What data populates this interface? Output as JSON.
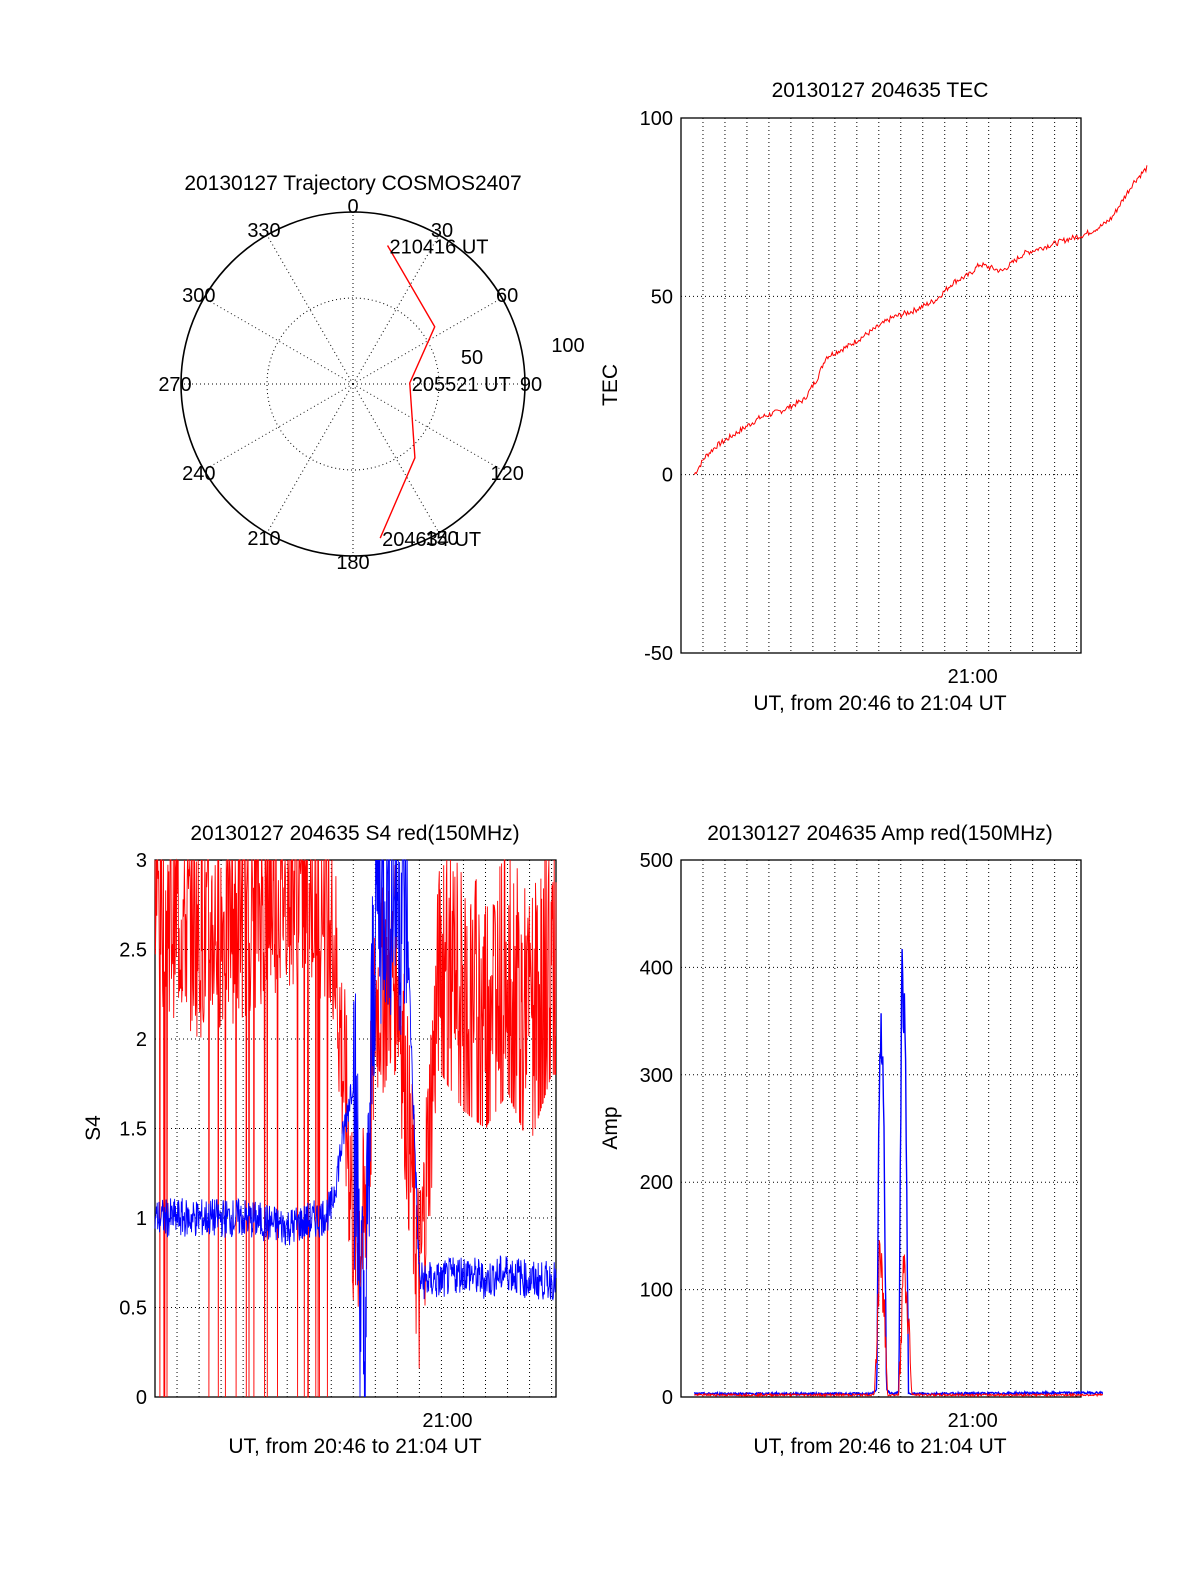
{
  "chart_data": [
    {
      "type": "polar",
      "title": "20130127 Trajectory COSMOS2407",
      "angle_labels": [
        "0",
        "30",
        "60",
        "90",
        "120",
        "150",
        "180",
        "210",
        "240",
        "270",
        "300",
        "330"
      ],
      "radial_labels": [
        "50",
        "100"
      ],
      "trajectory": {
        "color": "#ff0000",
        "points": [
          {
            "az": 14,
            "r": 83,
            "label": "210416 UT"
          },
          {
            "az": 55,
            "r": 58
          },
          {
            "az": 89,
            "r": 33,
            "label": "205521 UT"
          },
          {
            "az": 140,
            "r": 56
          },
          {
            "az": 170,
            "r": 91,
            "label": "204634 UT"
          }
        ]
      }
    },
    {
      "type": "line",
      "title": "20130127 204635 TEC",
      "xlabel": "UT, from 20:46 to 21:04 UT",
      "ylabel": "TEC",
      "x_range_minutes": [
        20.6,
        21.1
      ],
      "ylim": [
        -50,
        100
      ],
      "yticks": [
        "-50",
        "0",
        "50",
        "100"
      ],
      "xticks": [
        {
          "label": "21:00",
          "minute": 0
        }
      ],
      "grid": true,
      "series": [
        {
          "color": "#ff0000",
          "x_minutes": [
            0.0,
            0.5,
            1.0,
            2.0,
            3.0,
            4.0,
            5.0,
            5.6,
            6.0,
            7.0,
            8.0,
            9.0,
            10.0,
            11.0,
            11.8,
            12.5,
            13.0,
            14.0,
            15.0,
            16.0,
            17.0,
            17.6,
            18.0,
            18.6,
            19.0,
            19.5,
            20.0,
            20.6
          ],
          "values": [
            0,
            5,
            8,
            12,
            16,
            18,
            21,
            27,
            33,
            36,
            40,
            44,
            46,
            49,
            54,
            56,
            59,
            57,
            62,
            64,
            66,
            67,
            68,
            70,
            72,
            77,
            82,
            86
          ]
        }
      ]
    },
    {
      "type": "line",
      "title": "20130127 204635 S4 red(150MHz)",
      "xlabel": "UT, from 20:46 to 21:04 UT",
      "ylabel": "S4",
      "ylim": [
        0,
        3
      ],
      "yticks": [
        "0",
        "0.5",
        "1",
        "1.5",
        "2",
        "2.5",
        "3"
      ],
      "xticks": [
        {
          "label": "21:00",
          "minute": 0
        }
      ],
      "grid": true,
      "series": [
        {
          "color": "#ff0000",
          "description_points_x_minutes": [
            0,
            2,
            4,
            6,
            8,
            9,
            9.5,
            10,
            11,
            12,
            13,
            14,
            15,
            16,
            17,
            18
          ],
          "values": [
            2.8,
            2.6,
            2.7,
            2.9,
            2.8,
            1.0,
            0.9,
            2.2,
            2.4,
            0.6,
            2.6,
            2.4,
            2.3,
            2.5,
            2.2,
            2.6
          ]
        },
        {
          "color": "#0000ff",
          "description_points_x_minutes": [
            0,
            2,
            4,
            6,
            7.5,
            8,
            9,
            9.5,
            10,
            10.5,
            11,
            11.4,
            12,
            13,
            14,
            15,
            16,
            17,
            18
          ],
          "values": [
            1.0,
            1.0,
            1.0,
            0.95,
            1.0,
            1.05,
            1.8,
            0.1,
            2.8,
            3.0,
            2.9,
            2.8,
            0.65,
            0.65,
            0.7,
            0.65,
            0.7,
            0.65,
            0.65
          ]
        }
      ]
    },
    {
      "type": "line",
      "title": "20130127 204635 Amp red(150MHz)",
      "xlabel": "UT, from 20:46 to 21:04 UT",
      "ylabel": "Amp",
      "ylim": [
        0,
        500
      ],
      "yticks": [
        "0",
        "100",
        "200",
        "300",
        "400",
        "500"
      ],
      "xticks": [
        {
          "label": "21:00",
          "minute": 0
        }
      ],
      "grid": true,
      "series": [
        {
          "color": "#0000ff",
          "x_minutes": [
            0,
            8.1,
            8.3,
            8.45,
            8.6,
            8.75,
            9.0,
            9.3,
            9.45,
            9.6,
            9.75,
            10.0,
            18.6
          ],
          "values": [
            2,
            2,
            5,
            340,
            320,
            5,
            2,
            3,
            400,
            330,
            3,
            2,
            3
          ]
        },
        {
          "color": "#ff0000",
          "x_minutes": [
            0,
            8.2,
            8.45,
            8.65,
            8.8,
            9.3,
            9.5,
            9.7,
            9.9,
            18.6
          ],
          "values": [
            1,
            1,
            130,
            80,
            1,
            1,
            120,
            90,
            1,
            1
          ]
        }
      ]
    }
  ]
}
